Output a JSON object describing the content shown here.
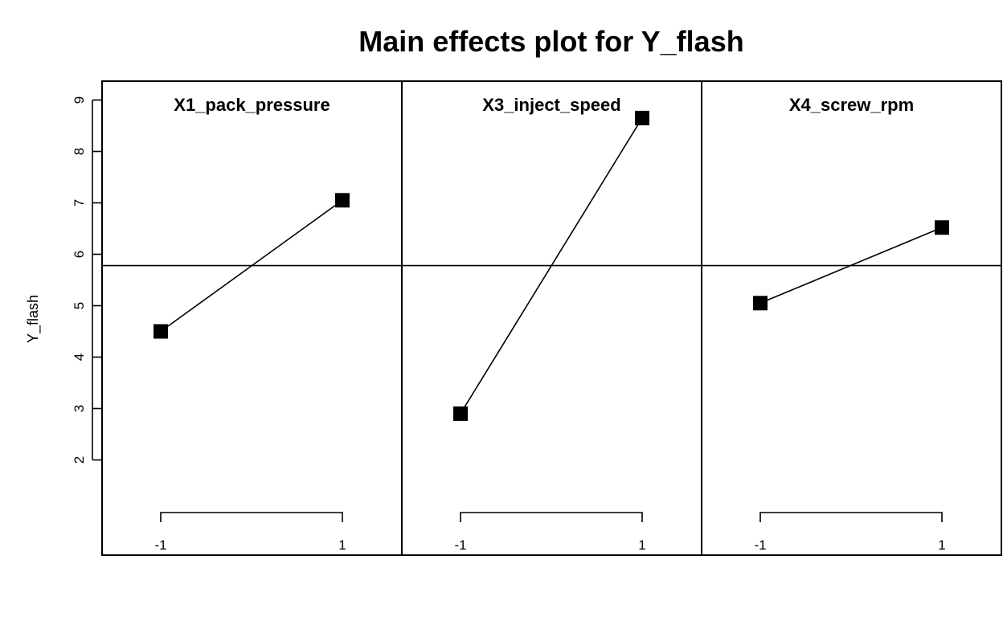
{
  "chart_data": {
    "type": "line",
    "title": "Main effects plot for Y_flash",
    "ylabel": "Y_flash",
    "ylim": [
      1,
      10
    ],
    "yticks": [
      2,
      3,
      4,
      5,
      6,
      7,
      8,
      9
    ],
    "x": [
      -1,
      1
    ],
    "x_tick_labels": [
      "-1",
      "1"
    ],
    "grand_mean": 5.78,
    "panels": [
      {
        "name": "X1_pack_pressure",
        "values": [
          4.5,
          7.05
        ]
      },
      {
        "name": "X3_inject_speed",
        "values": [
          2.9,
          8.65
        ]
      },
      {
        "name": "X4_screw_rpm",
        "values": [
          5.05,
          6.52
        ]
      }
    ],
    "colors": {
      "line": "#000000",
      "marker": "#000000",
      "background": "#ffffff"
    }
  }
}
